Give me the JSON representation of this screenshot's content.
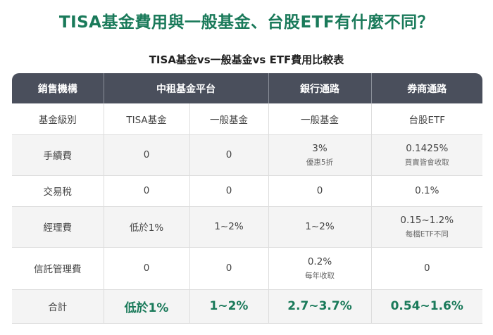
{
  "headline": "TISA基金費用與一般基金、台股ETF有什麼不同？",
  "table_title": "TISA基金vs一般基金vs ETF費用比較表",
  "headers": {
    "col0": "銷售機構",
    "group1": "中租基金平台",
    "col3": "銀行通路",
    "col4": "券商通路"
  },
  "rows": {
    "fund_class": {
      "label": "基金級別",
      "tisa": "TISA基金",
      "general": "一般基金",
      "bank": "一般基金",
      "broker": "台股ETF"
    },
    "handling_fee": {
      "label": "手續費",
      "tisa": "0",
      "general": "0",
      "bank": "3%",
      "bank_note": "優惠5折",
      "broker": "0.1425%",
      "broker_note": "買賣皆會收取"
    },
    "transaction_tax": {
      "label": "交易稅",
      "tisa": "0",
      "general": "0",
      "bank": "0",
      "broker": "0.1%"
    },
    "management_fee": {
      "label": "經理費",
      "tisa": "低於1%",
      "general": "1~2%",
      "bank": "1~2%",
      "broker": "0.15~1.2%",
      "broker_note": "每檔ETF不同"
    },
    "trust_fee": {
      "label": "信託管理費",
      "tisa": "0",
      "general": "0",
      "bank": "0.2%",
      "bank_note": "每年收取",
      "broker": "0"
    },
    "total": {
      "label": "合計",
      "tisa": "低於1%",
      "general": "1~2%",
      "bank": "2.7~3.7%",
      "broker": "0.54~1.6%"
    }
  },
  "colors": {
    "accent_green": "#1a7a5a",
    "header_bg": "#4a4f5c"
  }
}
